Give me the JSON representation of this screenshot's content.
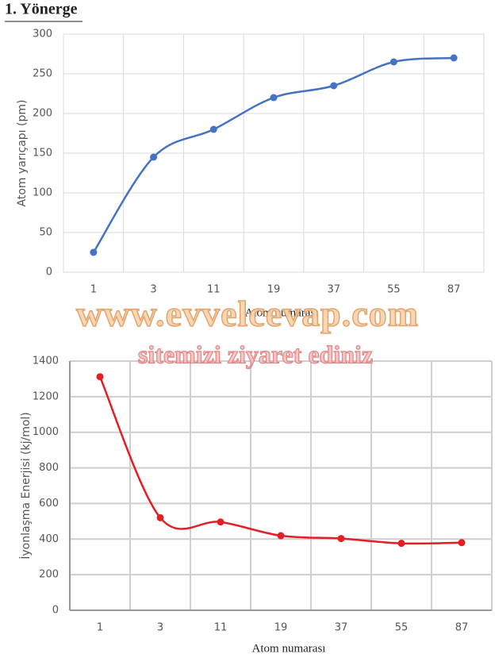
{
  "heading": "1. Yönerge",
  "watermark": {
    "site": "www.evvelcevap.com",
    "invite": "sitemizi ziyaret ediniz"
  },
  "chart_data": [
    {
      "type": "line",
      "categories": [
        "1",
        "3",
        "11",
        "19",
        "37",
        "55",
        "87"
      ],
      "series": [
        {
          "color": "#4472c4",
          "values": [
            25,
            145,
            180,
            220,
            235,
            265,
            270
          ]
        }
      ],
      "xlabel": "Atom numarası",
      "ylabel": "Atom yarıçapı (pm)",
      "ylim": [
        0,
        300
      ],
      "yticks": [
        0,
        50,
        100,
        150,
        200,
        250,
        300
      ],
      "grid": true,
      "smooth": true
    },
    {
      "type": "line",
      "categories": [
        "1",
        "3",
        "11",
        "19",
        "37",
        "55",
        "87"
      ],
      "series": [
        {
          "color": "#e31e24",
          "values": [
            1312,
            520,
            496,
            419,
            403,
            376,
            380
          ]
        }
      ],
      "xlabel": "Atom numarası",
      "ylabel": "İyonlaşma Enerjisi (kj/mol)",
      "ylim": [
        0,
        1400
      ],
      "yticks": [
        0,
        200,
        400,
        600,
        800,
        1000,
        1200,
        1400
      ],
      "grid": true,
      "smooth": true
    }
  ]
}
